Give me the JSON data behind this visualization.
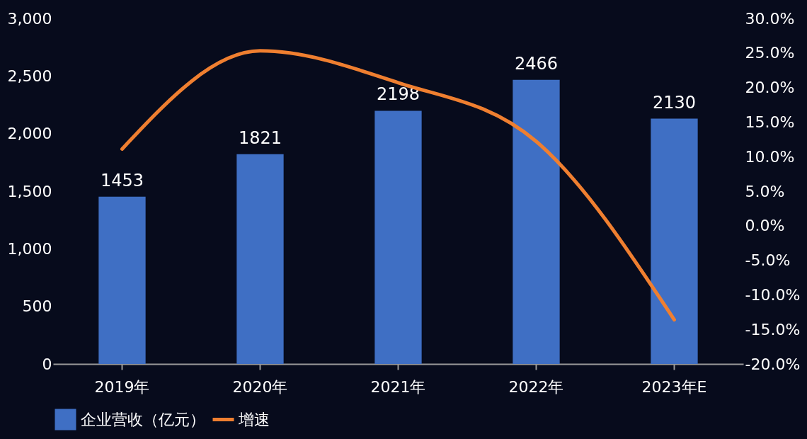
{
  "chart_data": {
    "type": "bar",
    "categories": [
      "2019年",
      "2020年",
      "2021年",
      "2022年",
      "2023年E"
    ],
    "series": [
      {
        "name": "企业营收（亿元）",
        "color": "#3f6fc4",
        "values": [
          1453,
          1821,
          2198,
          2466,
          2130
        ],
        "value_labels": [
          "1453",
          "1821",
          "2198",
          "2466",
          "2130"
        ]
      },
      {
        "name": "增速",
        "type": "line",
        "axis": "y2",
        "color": "#ef7f30",
        "values": [
          11.1,
          25.3,
          20.7,
          12.2,
          -13.6
        ]
      }
    ],
    "ylim": [
      0,
      3000
    ],
    "yticks": [
      {
        "value": 0,
        "label": "0"
      },
      {
        "value": 500,
        "label": "500"
      },
      {
        "value": 1000,
        "label": "1,000"
      },
      {
        "value": 1500,
        "label": "1,500"
      },
      {
        "value": 2000,
        "label": "2,000"
      },
      {
        "value": 2500,
        "label": "2,500"
      },
      {
        "value": 3000,
        "label": "3,000"
      }
    ],
    "y2lim": [
      -20,
      30
    ],
    "y2ticks": [
      {
        "value": -20,
        "label": "-20.0%"
      },
      {
        "value": -15,
        "label": "-15.0%"
      },
      {
        "value": -10,
        "label": "-10.0%"
      },
      {
        "value": -5,
        "label": "-5.0%"
      },
      {
        "value": 0,
        "label": "0.0%"
      },
      {
        "value": 5,
        "label": "5.0%"
      },
      {
        "value": 10,
        "label": "10.0%"
      },
      {
        "value": 15,
        "label": "15.0%"
      },
      {
        "value": 20,
        "label": "20.0%"
      },
      {
        "value": 25,
        "label": "25.0%"
      },
      {
        "value": 30,
        "label": "30.0%"
      }
    ],
    "grid": false,
    "legend": "bottom",
    "marker": "none",
    "line_style": "solid"
  }
}
